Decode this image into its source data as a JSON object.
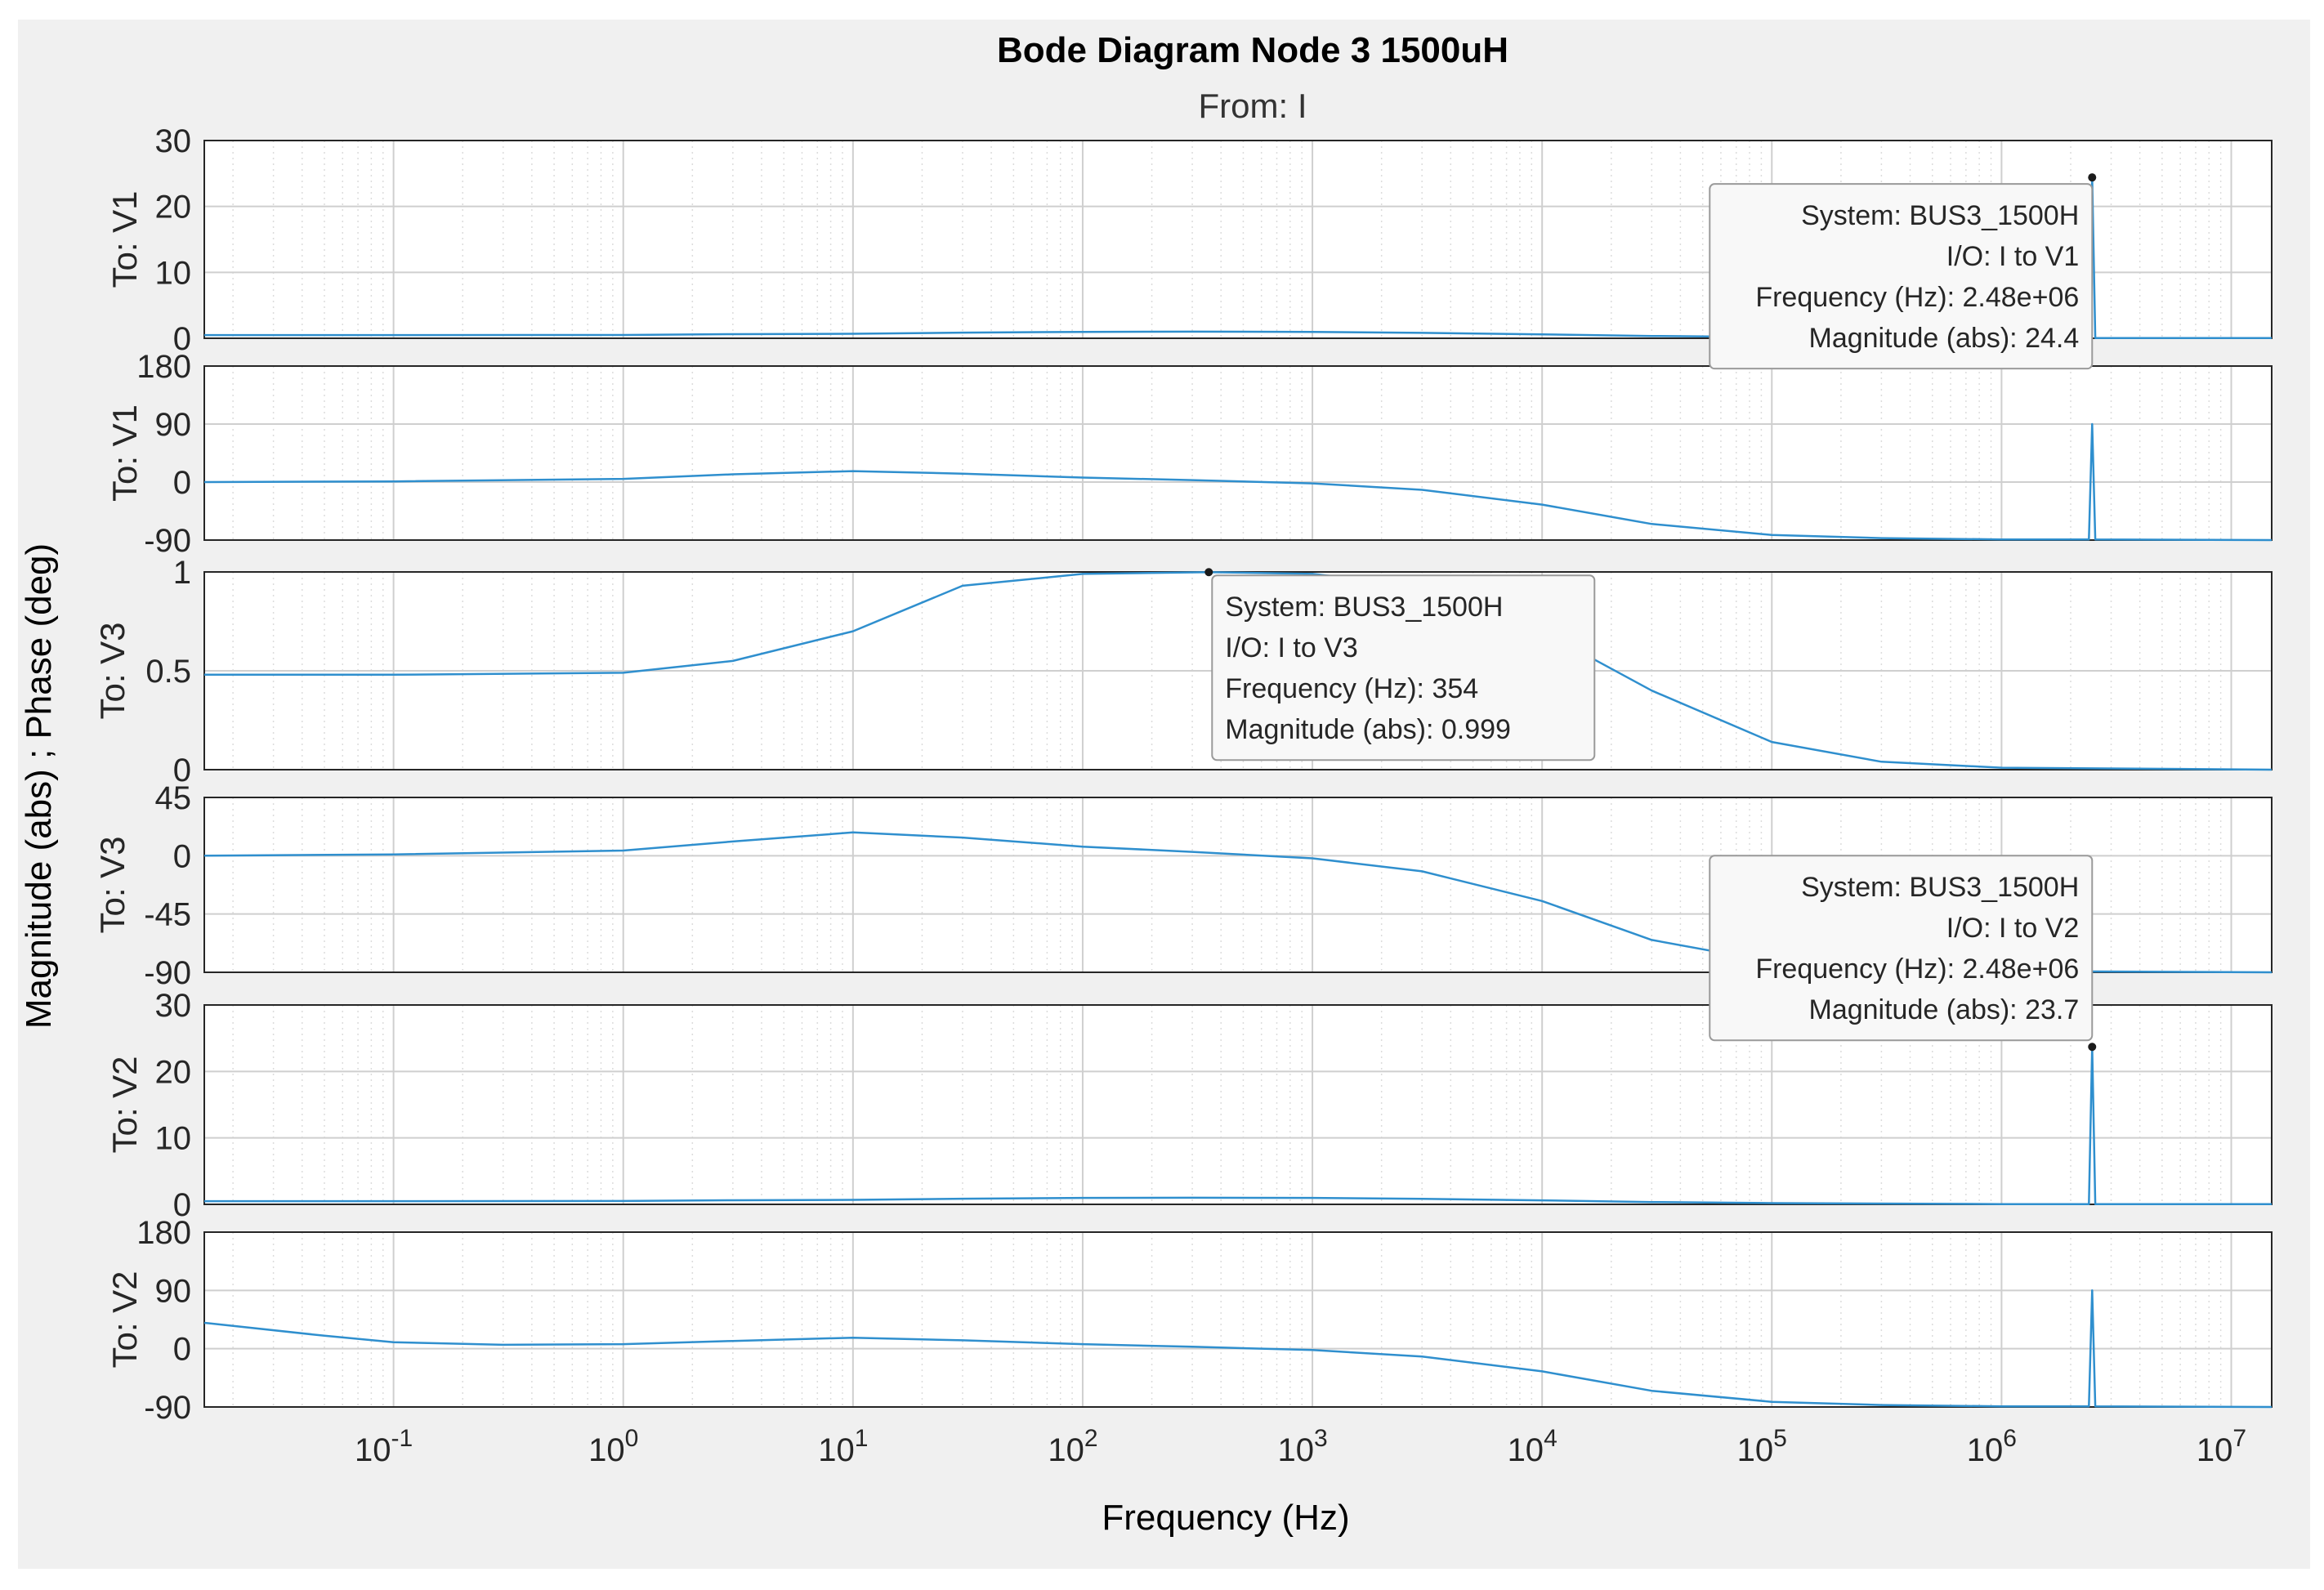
{
  "chart_data": {
    "type": "line",
    "title": "Bode Diagram  Node 3 1500uH",
    "subtitle": "From: I",
    "ylabel": "Magnitude (abs) ; Phase (deg)",
    "xlabel": "Frequency  (Hz)",
    "x_scale": "log",
    "xlim": [
      0.015,
      15000000
    ],
    "x_ticks": [
      {
        "value": 0.1,
        "base": "10",
        "exp": "-1"
      },
      {
        "value": 1,
        "base": "10",
        "exp": "0"
      },
      {
        "value": 10,
        "base": "10",
        "exp": "1"
      },
      {
        "value": 100,
        "base": "10",
        "exp": "2"
      },
      {
        "value": 1000,
        "base": "10",
        "exp": "3"
      },
      {
        "value": 10000,
        "base": "10",
        "exp": "4"
      },
      {
        "value": 100000,
        "base": "10",
        "exp": "5"
      },
      {
        "value": 1000000,
        "base": "10",
        "exp": "6"
      },
      {
        "value": 10000000,
        "base": "10",
        "exp": "7"
      }
    ],
    "grid": true,
    "line_color": "#2f8fce",
    "panels": [
      {
        "ylabel": "To: V1",
        "kind": "magnitude",
        "ylim": [
          0,
          30
        ],
        "yticks": [
          0,
          10,
          20,
          30
        ],
        "ytick_labels": [
          "0",
          "10",
          "20",
          "30"
        ],
        "x": [
          0.015,
          0.1,
          1,
          3,
          10,
          30,
          100,
          300,
          1000,
          3000,
          10000,
          30000,
          100000,
          1000000,
          2400000,
          2480000,
          2560000,
          15000000
        ],
        "y": [
          0.48,
          0.48,
          0.5,
          0.62,
          0.68,
          0.85,
          0.97,
          1.0,
          0.97,
          0.82,
          0.6,
          0.35,
          0.18,
          0.04,
          0.04,
          24.4,
          0.04,
          0.02
        ]
      },
      {
        "ylabel": "To: V1",
        "kind": "phase",
        "ylim": [
          -90,
          180
        ],
        "yticks": [
          -90,
          0,
          90,
          180
        ],
        "ytick_labels": [
          "-90",
          "0",
          "90",
          "180"
        ],
        "x": [
          0.015,
          0.1,
          1,
          3,
          10,
          30,
          100,
          300,
          1000,
          3000,
          10000,
          30000,
          100000,
          300000,
          1000000,
          2400000,
          2480000,
          2560000,
          15000000
        ],
        "y": [
          0,
          1,
          5,
          12,
          17,
          13,
          7,
          3,
          -2,
          -12,
          -35,
          -65,
          -82,
          -87,
          -89,
          -89,
          90,
          -89,
          -90
        ]
      },
      {
        "ylabel": "To: V3",
        "kind": "magnitude",
        "ylim": [
          0,
          1
        ],
        "yticks": [
          0,
          0.5,
          1
        ],
        "ytick_labels": [
          "0",
          "0.5",
          "1"
        ],
        "x": [
          0.015,
          0.1,
          1,
          3,
          10,
          30,
          100,
          354,
          1000,
          3000,
          10000,
          30000,
          100000,
          300000,
          1000000,
          15000000
        ],
        "y": [
          0.48,
          0.48,
          0.49,
          0.55,
          0.7,
          0.93,
          0.99,
          0.999,
          0.99,
          0.93,
          0.7,
          0.4,
          0.14,
          0.04,
          0.01,
          0.0
        ]
      },
      {
        "ylabel": "To: V3",
        "kind": "phase",
        "ylim": [
          -90,
          45
        ],
        "yticks": [
          -90,
          -45,
          0,
          45
        ],
        "ytick_labels": [
          "-90",
          "-45",
          "0",
          "45"
        ],
        "x": [
          0.015,
          0.1,
          1,
          3,
          10,
          30,
          100,
          300,
          1000,
          3000,
          10000,
          30000,
          100000,
          300000,
          1000000,
          15000000
        ],
        "y": [
          0,
          1,
          4,
          11,
          18,
          14,
          7,
          3,
          -2,
          -12,
          -35,
          -65,
          -82,
          -87,
          -89,
          -90
        ]
      },
      {
        "ylabel": "To: V2",
        "kind": "magnitude",
        "ylim": [
          0,
          30
        ],
        "yticks": [
          0,
          10,
          20,
          30
        ],
        "ytick_labels": [
          "0",
          "10",
          "20",
          "30"
        ],
        "x": [
          0.015,
          0.1,
          1,
          3,
          10,
          30,
          100,
          300,
          1000,
          3000,
          10000,
          30000,
          100000,
          1000000,
          2400000,
          2480000,
          2560000,
          15000000
        ],
        "y": [
          0.48,
          0.48,
          0.5,
          0.62,
          0.68,
          0.85,
          0.97,
          1.0,
          0.97,
          0.82,
          0.6,
          0.35,
          0.18,
          0.04,
          0.04,
          23.7,
          0.04,
          0.02
        ]
      },
      {
        "ylabel": "To: V2",
        "kind": "phase",
        "ylim": [
          -90,
          180
        ],
        "yticks": [
          -90,
          0,
          90,
          180
        ],
        "ytick_labels": [
          "-90",
          "0",
          "90",
          "180"
        ],
        "x": [
          0.015,
          0.05,
          0.1,
          0.3,
          1,
          3,
          10,
          30,
          100,
          300,
          1000,
          3000,
          10000,
          30000,
          100000,
          300000,
          1000000,
          2400000,
          2480000,
          2560000,
          15000000
        ],
        "y": [
          40,
          20,
          10,
          6,
          7,
          12,
          17,
          13,
          7,
          3,
          -2,
          -12,
          -35,
          -65,
          -82,
          -87,
          -89,
          -89,
          90,
          -89,
          -90
        ]
      }
    ],
    "annotations": [
      {
        "panel": 0,
        "x": 2480000,
        "y": 24.4,
        "box_side": "left-below",
        "lines": [
          "System: BUS3_1500H",
          "I/O: I to V1",
          "Frequency (Hz): 2.48e+06",
          "Magnitude (abs): 24.4"
        ]
      },
      {
        "panel": 2,
        "x": 354,
        "y": 0.999,
        "box_side": "right-below",
        "lines": [
          "System: BUS3_1500H",
          "I/O: I to V3",
          "Frequency (Hz): 354",
          "Magnitude (abs): 0.999"
        ]
      },
      {
        "panel": 4,
        "x": 2480000,
        "y": 23.7,
        "box_side": "left-above",
        "lines": [
          "System: BUS3_1500H",
          "I/O: I to V2",
          "Frequency (Hz): 2.48e+06",
          "Magnitude (abs): 23.7"
        ]
      }
    ]
  }
}
